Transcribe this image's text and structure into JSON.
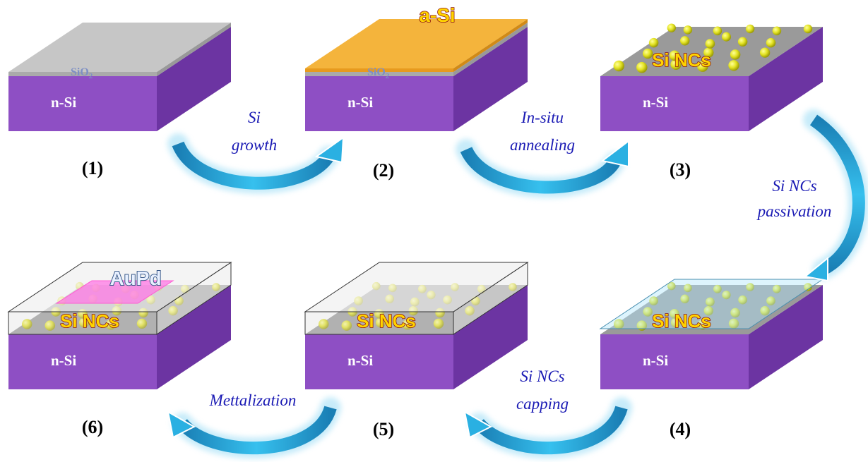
{
  "colors": {
    "substrate_front": "#8e4fc4",
    "substrate_side": "#6c34a2",
    "oxide_gray": "#c6c6c6",
    "asi_orange": "#f4b43c",
    "nc_yellow": "#e6e62a",
    "arrow_blue": "#2ab0e2",
    "caption_blue": "#1a1ab4",
    "nc_label_fill": "#ffd400",
    "nc_label_stroke": "#8a1010",
    "passivation_cyan": "#bfe6f5",
    "aupd_pink": "#ff7fe0"
  },
  "substrate_label": "n-Si",
  "oxide_label_main": "SiO",
  "oxide_label_sub": "2",
  "asi_label": "a-Si",
  "nc_label": "Si NCs",
  "aupd_label": "AuPd",
  "steps": [
    {
      "number": "(1)"
    },
    {
      "number": "(2)"
    },
    {
      "number": "(3)"
    },
    {
      "number": "(4)"
    },
    {
      "number": "(5)"
    },
    {
      "number": "(6)"
    }
  ],
  "transitions": [
    {
      "line1": "Si",
      "line2": "growth"
    },
    {
      "line1": "In-situ",
      "line2": "annealing"
    },
    {
      "line1": "Si NCs",
      "line2": "passivation"
    },
    {
      "line1": "Si NCs",
      "line2": "capping"
    },
    {
      "line1": "Mettalization",
      "line2": ""
    }
  ],
  "icons": {
    "arrow": "curved-arrow-icon"
  }
}
